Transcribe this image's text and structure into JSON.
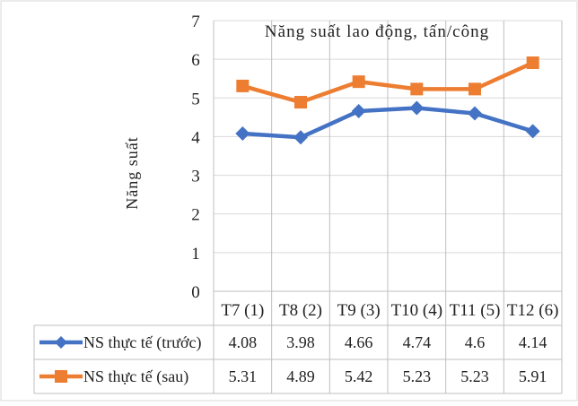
{
  "chart_data": {
    "type": "line",
    "title": "Năng suất lao động, tấn/công",
    "ylabel": "Năng suất",
    "xlabel": "",
    "ylim": [
      0,
      7
    ],
    "yticks": [
      0,
      1,
      2,
      3,
      4,
      5,
      6,
      7
    ],
    "grid": true,
    "categories": [
      "T7 (1)",
      "T8 (2)",
      "T9 (3)",
      "T10 (4)",
      "T11 (5)",
      "T12 (6)"
    ],
    "legend": "data-table-bottom",
    "series": [
      {
        "name": "NS thực tế (trước)",
        "color": "#4472C4",
        "marker": "diamond",
        "values": [
          4.08,
          3.98,
          4.66,
          4.74,
          4.6,
          4.14
        ]
      },
      {
        "name": "NS thực tế (sau)",
        "color": "#ED7D31",
        "marker": "square",
        "values": [
          5.31,
          4.89,
          5.42,
          5.23,
          5.23,
          5.91
        ]
      }
    ]
  }
}
